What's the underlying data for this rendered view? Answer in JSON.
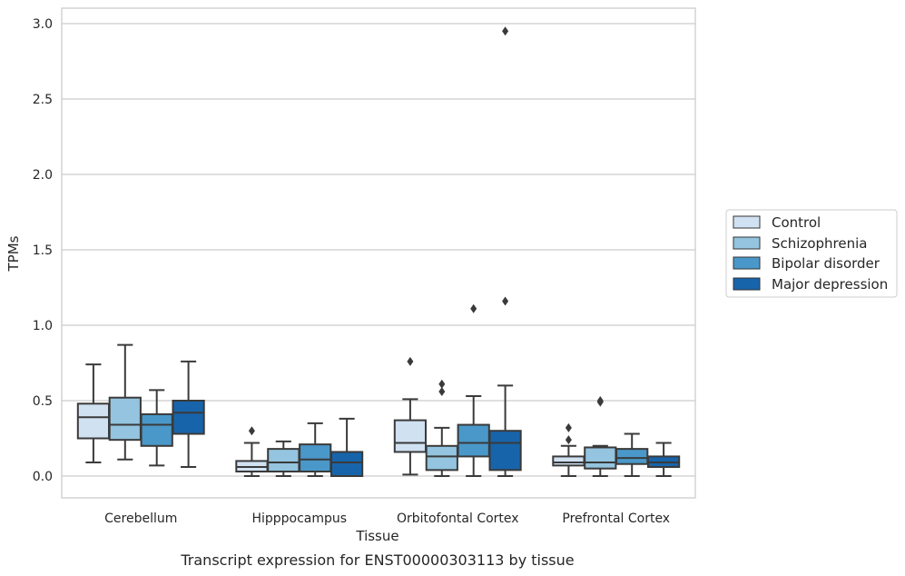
{
  "chart_data": {
    "type": "box",
    "xlabel": "Tissue",
    "ylabel": "TPMs",
    "caption": "Transcript expression for ENST00000303113 by tissue",
    "ylim": [
      -0.14,
      3.1
    ],
    "yticks": [
      0.0,
      0.5,
      1.0,
      1.5,
      2.0,
      2.5,
      3.0
    ],
    "ytick_labels": [
      "0.0",
      "0.5",
      "1.0",
      "1.5",
      "2.0",
      "2.5",
      "3.0"
    ],
    "grid": "horizontal",
    "legend_position": "right",
    "categories": [
      "Cerebellum",
      "Hipppocampus",
      "Orbitofontal Cortex",
      "Prefrontal Cortex"
    ],
    "series": [
      {
        "name": "Control",
        "color": "#d0e1f2",
        "boxes": [
          {
            "whislo": 0.09,
            "q1": 0.25,
            "med": 0.39,
            "q3": 0.48,
            "whishi": 0.74,
            "fliers": []
          },
          {
            "whislo": 0.0,
            "q1": 0.03,
            "med": 0.06,
            "q3": 0.1,
            "whishi": 0.22,
            "fliers": [
              0.3
            ]
          },
          {
            "whislo": 0.01,
            "q1": 0.16,
            "med": 0.22,
            "q3": 0.37,
            "whishi": 0.51,
            "fliers": [
              0.76
            ]
          },
          {
            "whislo": 0.0,
            "q1": 0.07,
            "med": 0.09,
            "q3": 0.13,
            "whishi": 0.2,
            "fliers": [
              0.24,
              0.32
            ]
          }
        ]
      },
      {
        "name": "Schizophrenia",
        "color": "#94c4df",
        "boxes": [
          {
            "whislo": 0.11,
            "q1": 0.24,
            "med": 0.34,
            "q3": 0.52,
            "whishi": 0.87,
            "fliers": []
          },
          {
            "whislo": 0.0,
            "q1": 0.03,
            "med": 0.09,
            "q3": 0.18,
            "whishi": 0.23,
            "fliers": []
          },
          {
            "whislo": 0.0,
            "q1": 0.04,
            "med": 0.13,
            "q3": 0.2,
            "whishi": 0.32,
            "fliers": [
              0.56,
              0.61
            ]
          },
          {
            "whislo": 0.0,
            "q1": 0.05,
            "med": 0.09,
            "q3": 0.19,
            "whishi": 0.2,
            "fliers": [
              0.49,
              0.5
            ]
          }
        ]
      },
      {
        "name": "Bipolar disorder",
        "color": "#4a98c9",
        "boxes": [
          {
            "whislo": 0.07,
            "q1": 0.2,
            "med": 0.34,
            "q3": 0.41,
            "whishi": 0.57,
            "fliers": []
          },
          {
            "whislo": 0.0,
            "q1": 0.03,
            "med": 0.11,
            "q3": 0.21,
            "whishi": 0.35,
            "fliers": []
          },
          {
            "whislo": 0.0,
            "q1": 0.13,
            "med": 0.22,
            "q3": 0.34,
            "whishi": 0.53,
            "fliers": [
              1.11
            ]
          },
          {
            "whislo": 0.0,
            "q1": 0.08,
            "med": 0.12,
            "q3": 0.18,
            "whishi": 0.28,
            "fliers": []
          }
        ]
      },
      {
        "name": "Major depression",
        "color": "#1764ab",
        "boxes": [
          {
            "whislo": 0.06,
            "q1": 0.28,
            "med": 0.42,
            "q3": 0.5,
            "whishi": 0.76,
            "fliers": []
          },
          {
            "whislo": 0.0,
            "q1": 0.0,
            "med": 0.09,
            "q3": 0.16,
            "whishi": 0.38,
            "fliers": []
          },
          {
            "whislo": 0.0,
            "q1": 0.04,
            "med": 0.22,
            "q3": 0.3,
            "whishi": 0.6,
            "fliers": [
              1.16,
              2.95
            ]
          },
          {
            "whislo": 0.0,
            "q1": 0.06,
            "med": 0.09,
            "q3": 0.13,
            "whishi": 0.22,
            "fliers": []
          }
        ]
      }
    ]
  }
}
